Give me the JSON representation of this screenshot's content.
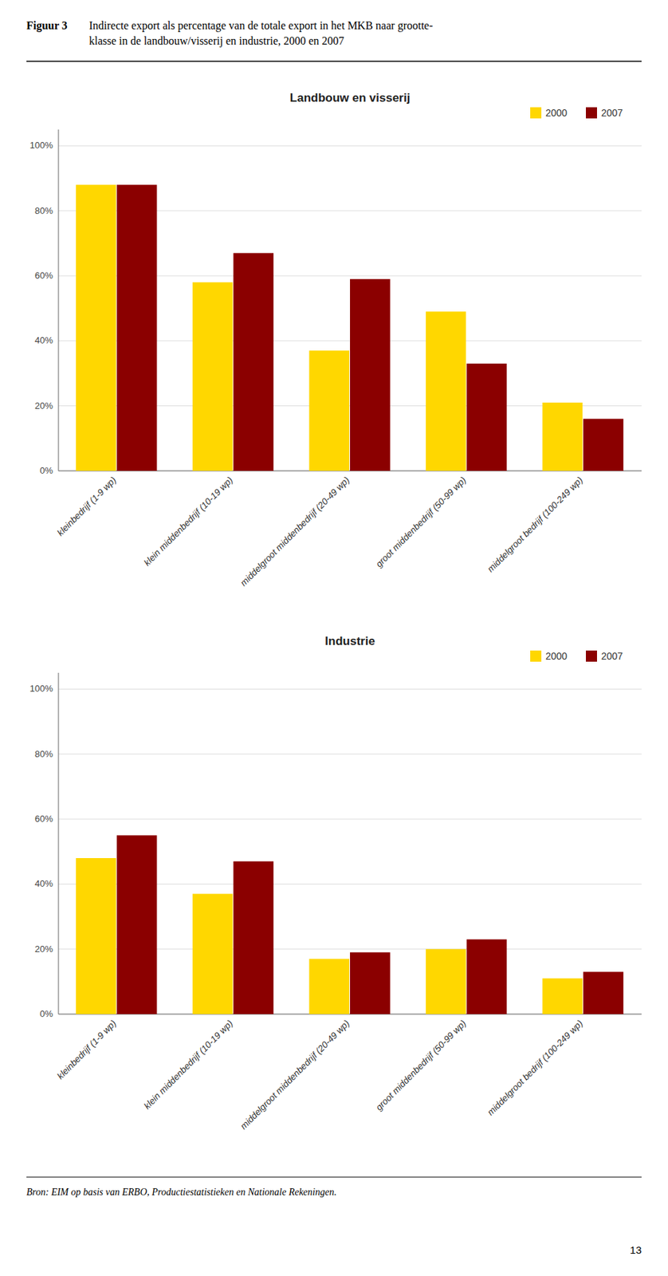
{
  "title": "Figuur 3",
  "subtitle": [
    "Indirecte export als percentage van de totale export in het MKB naar grootte-",
    "klasse in de landbouw/visserij en industrie, 2000 en 2007"
  ],
  "annotations": [
    "Bron: EIM op basis van ERBO, Productiestatistieken en Nationale Rekeningen.",
    "13"
  ],
  "chart_data": [
    {
      "type": "bar",
      "title": "Landbouw en visserij",
      "categories": [
        "kleinbedrijf (1-9 wp)",
        "klein middenbedrijf (10-19 wp)",
        "middelgroot middenbedrijf (20-49 wp)",
        "groot middenbedrijf (50-99 wp)",
        "middelgroot bedrijf (100-249 wp)"
      ],
      "series": [
        {
          "name": "2000",
          "color": "#FFD700",
          "values": [
            88,
            58,
            37,
            49,
            21
          ]
        },
        {
          "name": "2007",
          "color": "#8B0000",
          "values": [
            88,
            67,
            59,
            33,
            16
          ]
        }
      ],
      "ylim": [
        0,
        105
      ],
      "yticks": [
        {
          "value": 0,
          "label": "0%"
        },
        {
          "value": 20,
          "label": "20%"
        },
        {
          "value": 40,
          "label": "40%"
        },
        {
          "value": 60,
          "label": "60%"
        },
        {
          "value": 80,
          "label": "80%"
        },
        {
          "value": 100,
          "label": "100%"
        }
      ],
      "grid": true,
      "legend": "upper right"
    },
    {
      "type": "bar",
      "title": "Industrie",
      "categories": [
        "kleinbedrijf (1-9 wp)",
        "klein middenbedrijf (10-19 wp)",
        "middelgroot middenbedrijf (20-49 wp)",
        "groot middenbedrijf (50-99 wp)",
        "middelgroot bedrijf (100-249 wp)"
      ],
      "series": [
        {
          "name": "2000",
          "color": "#FFD700",
          "values": [
            48,
            37,
            17,
            20,
            11
          ]
        },
        {
          "name": "2007",
          "color": "#8B0000",
          "values": [
            55,
            47,
            19,
            23,
            13
          ]
        }
      ],
      "ylim": [
        0,
        105
      ],
      "yticks": [
        {
          "value": 0,
          "label": "0%"
        },
        {
          "value": 20,
          "label": "20%"
        },
        {
          "value": 40,
          "label": "40%"
        },
        {
          "value": 60,
          "label": "60%"
        },
        {
          "value": 80,
          "label": "80%"
        },
        {
          "value": 100,
          "label": "100%"
        }
      ],
      "grid": true,
      "legend": "upper right"
    }
  ]
}
